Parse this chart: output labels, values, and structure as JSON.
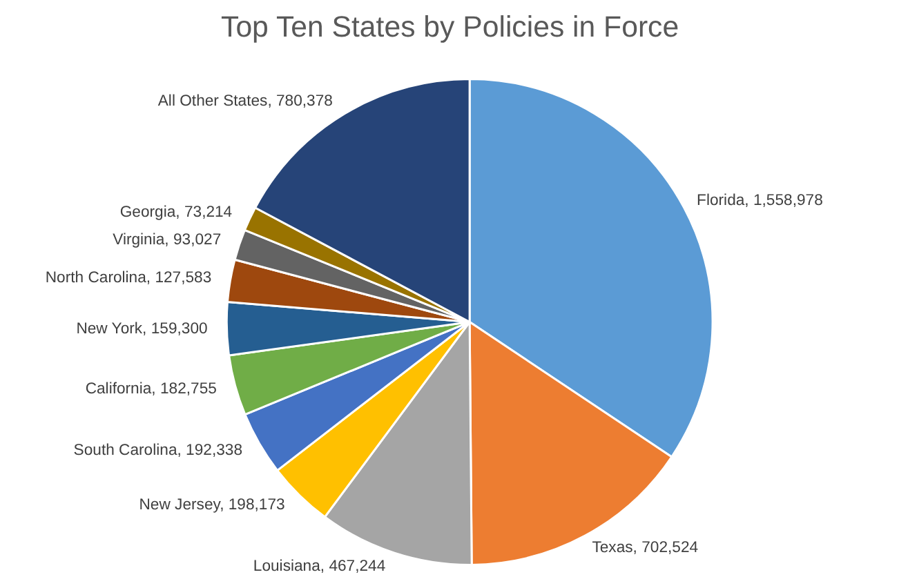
{
  "chart_data": {
    "type": "pie",
    "title": "Top Ten States by Policies in Force",
    "categories": [
      "Florida",
      "Texas",
      "Louisiana",
      "New Jersey",
      "South Carolina",
      "California",
      "New York",
      "North Carolina",
      "Virginia",
      "Georgia",
      "All Other States"
    ],
    "values": [
      1558978,
      702524,
      467244,
      198173,
      192338,
      182755,
      159300,
      127583,
      93027,
      73214,
      780378
    ],
    "value_labels": [
      "1,558,978",
      "702,524",
      "467,244",
      "198,173",
      "192,338",
      "182,755",
      "159,300",
      "127,583",
      "93,027",
      "73,214",
      "780,378"
    ],
    "colors": [
      "#5b9bd5",
      "#ed7d31",
      "#a5a5a5",
      "#ffc000",
      "#4472c4",
      "#70ad47",
      "#255e91",
      "#9e480e",
      "#636363",
      "#997300",
      "#264478"
    ],
    "legend": false
  }
}
